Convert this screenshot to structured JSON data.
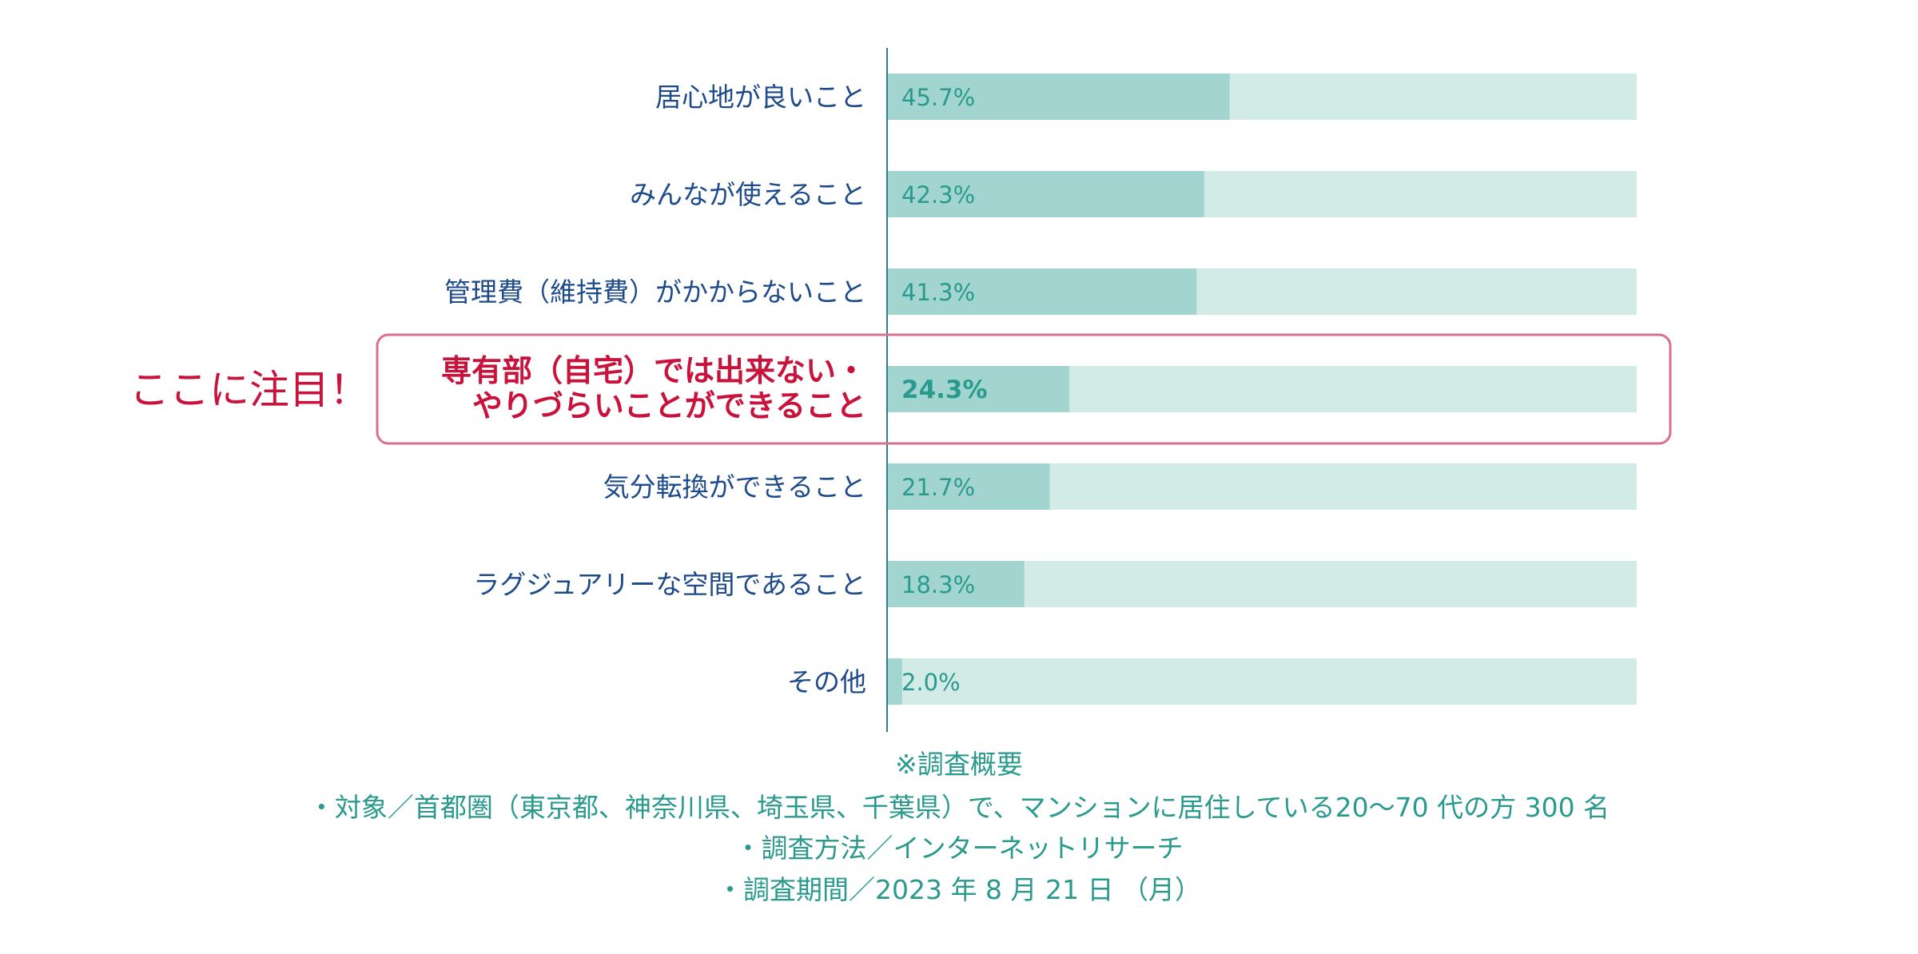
{
  "chart_data": {
    "type": "bar",
    "orientation": "horizontal",
    "categories": [
      [
        "居心地が良いこと"
      ],
      [
        "みんなが使えること"
      ],
      [
        "管理費（維持費）がかからないこと"
      ],
      [
        "専有部（自宅）では出来ない・",
        "やりづらいことができること"
      ],
      [
        "気分転換ができること"
      ],
      [
        "ラグジュアリーな空間であること"
      ],
      [
        "その他"
      ]
    ],
    "values": [
      45.7,
      42.3,
      41.3,
      24.3,
      21.7,
      18.3,
      2.0
    ],
    "value_labels": [
      "45.7%",
      "42.3%",
      "41.3%",
      "24.3%",
      "21.7%",
      "18.3%",
      "2.0%"
    ],
    "xlim": [
      0,
      100
    ],
    "highlight_index": 3,
    "grid": false,
    "colors": {
      "bar": "#a2d5cf",
      "track": "#d2ebe7",
      "axis": "#2f7f88",
      "category_text": "#1d4a8a",
      "value_text": "#2a9a8e",
      "highlight": "#c8143c",
      "highlight_box": "#d9708f"
    }
  },
  "callout": "ここに注目！",
  "notes": [
    "※調査概要",
    "・対象／首都圏（東京都、神奈川県、埼玉県、千葉県）で、マンションに居住している20〜70 代の方 300 名",
    "・調査方法／インターネットリサーチ",
    "・調査期間／2023 年 8 月 21 日 （月）"
  ]
}
